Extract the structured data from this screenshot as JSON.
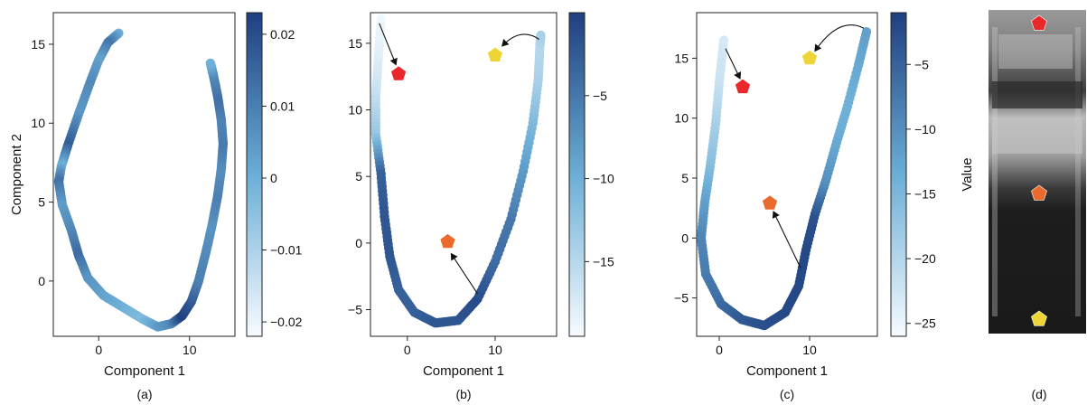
{
  "colors": {
    "cmap_light": "#f7fbff",
    "cmap_mid": "#6baed6",
    "cmap_dark": "#1f3f7f",
    "marker_red": "#e8282b",
    "marker_orange": "#eb6a2e",
    "marker_yellow": "#ecd534",
    "axis": "#222222"
  },
  "panels": {
    "a": {
      "caption": "(a)"
    },
    "b": {
      "caption": "(b)"
    },
    "c": {
      "caption": "(c)"
    },
    "d": {
      "caption": "(d)"
    }
  },
  "photo": {
    "description_icon": "sample-tube-photo",
    "markers": [
      "red",
      "orange",
      "yellow"
    ]
  },
  "chart_data": [
    {
      "type": "scatter",
      "panel": "a",
      "xlabel": "Component 1",
      "ylabel": "Component 2",
      "xlim": [
        -5,
        15
      ],
      "ylim": [
        -3.5,
        17
      ],
      "xticks": [
        0,
        10
      ],
      "yticks": [
        0,
        5,
        10,
        15
      ],
      "colorbar": {
        "label": "",
        "range": [
          -0.022,
          0.023
        ],
        "ticks": [
          0.02,
          0.01,
          0,
          -0.01,
          -0.02
        ],
        "tick_labels": [
          "0.02",
          "0.01",
          "0",
          "−0.01",
          "−0.02"
        ]
      },
      "points": [
        {
          "x": 2.2,
          "y": 15.7,
          "v": 0.0
        },
        {
          "x": 1.0,
          "y": 15.1,
          "v": 0.012
        },
        {
          "x": 0.0,
          "y": 14.0,
          "v": 0.003
        },
        {
          "x": -1.0,
          "y": 12.5,
          "v": 0.008
        },
        {
          "x": -2.2,
          "y": 10.6,
          "v": 0.005
        },
        {
          "x": -3.4,
          "y": 8.6,
          "v": 0.017
        },
        {
          "x": -4.1,
          "y": 7.3,
          "v": 0.0
        },
        {
          "x": -4.4,
          "y": 6.3,
          "v": 0.013
        },
        {
          "x": -4.0,
          "y": 4.8,
          "v": 0.004
        },
        {
          "x": -3.0,
          "y": 3.2,
          "v": 0.008
        },
        {
          "x": -2.2,
          "y": 1.6,
          "v": 0.014
        },
        {
          "x": -1.2,
          "y": 0.2,
          "v": 0.006
        },
        {
          "x": 0.5,
          "y": -0.9,
          "v": 0.003
        },
        {
          "x": 2.8,
          "y": -1.7,
          "v": 0.0
        },
        {
          "x": 4.8,
          "y": -2.4,
          "v": -0.003
        },
        {
          "x": 6.5,
          "y": -2.9,
          "v": 0.004
        },
        {
          "x": 8.0,
          "y": -2.7,
          "v": 0.008
        },
        {
          "x": 9.2,
          "y": -2.2,
          "v": 0.023
        },
        {
          "x": 10.2,
          "y": -1.3,
          "v": 0.018
        },
        {
          "x": 11.0,
          "y": 0.0,
          "v": 0.01
        },
        {
          "x": 11.8,
          "y": 1.8,
          "v": 0.008
        },
        {
          "x": 12.5,
          "y": 3.6,
          "v": 0.006
        },
        {
          "x": 13.1,
          "y": 5.4,
          "v": 0.01
        },
        {
          "x": 13.5,
          "y": 7.1,
          "v": 0.007
        },
        {
          "x": 13.7,
          "y": 8.7,
          "v": 0.011
        },
        {
          "x": 13.5,
          "y": 10.2,
          "v": 0.009
        },
        {
          "x": 13.1,
          "y": 11.7,
          "v": 0.013
        },
        {
          "x": 12.6,
          "y": 13.1,
          "v": 0.008
        },
        {
          "x": 12.3,
          "y": 13.8,
          "v": 0.0
        }
      ]
    },
    {
      "type": "scatter",
      "panel": "b",
      "xlabel": "Component 1",
      "ylabel": "",
      "xlim": [
        -4.2,
        17
      ],
      "ylim": [
        -7,
        17.3
      ],
      "xticks": [
        0,
        10
      ],
      "yticks": [
        -5,
        0,
        5,
        10,
        15
      ],
      "colorbar": {
        "label": "",
        "range": [
          -19.5,
          0
        ],
        "ticks": [
          -5,
          -10,
          -15
        ],
        "tick_labels": [
          "−5",
          "−10",
          "−15"
        ]
      },
      "points": [
        {
          "x": -3.0,
          "y": 16.8,
          "v": -19
        },
        {
          "x": -3.3,
          "y": 14.0,
          "v": -18
        },
        {
          "x": -3.6,
          "y": 11.0,
          "v": -16
        },
        {
          "x": -3.6,
          "y": 8.2,
          "v": -13
        },
        {
          "x": -3.0,
          "y": 5.2,
          "v": -3
        },
        {
          "x": -2.6,
          "y": 2.0,
          "v": -2
        },
        {
          "x": -2.0,
          "y": -1.0,
          "v": -2
        },
        {
          "x": -1.0,
          "y": -3.5,
          "v": -3
        },
        {
          "x": 0.8,
          "y": -5.2,
          "v": -3
        },
        {
          "x": 3.2,
          "y": -6.0,
          "v": -2
        },
        {
          "x": 5.8,
          "y": -5.8,
          "v": -2
        },
        {
          "x": 8.0,
          "y": -4.2,
          "v": -1
        },
        {
          "x": 10.0,
          "y": -1.4,
          "v": -4
        },
        {
          "x": 11.8,
          "y": 1.8,
          "v": -5
        },
        {
          "x": 13.2,
          "y": 5.4,
          "v": -8
        },
        {
          "x": 14.3,
          "y": 9.0,
          "v": -11
        },
        {
          "x": 14.9,
          "y": 12.2,
          "v": -14
        },
        {
          "x": 15.1,
          "y": 14.8,
          "v": -15
        },
        {
          "x": 15.2,
          "y": 15.6,
          "v": -14
        }
      ],
      "markers": [
        {
          "name": "red",
          "x": -1.0,
          "y": 12.7
        },
        {
          "name": "yellow",
          "x": 10.0,
          "y": 14.1
        },
        {
          "name": "orange",
          "x": 4.6,
          "y": 0.1
        }
      ],
      "arrows": [
        {
          "from": [
            -3.2,
            16.5
          ],
          "to": [
            -1.3,
            13.4
          ]
        },
        {
          "from": [
            15.0,
            15.3
          ],
          "to": [
            10.8,
            14.8
          ]
        },
        {
          "from": [
            8.0,
            -3.8
          ],
          "to": [
            5.0,
            -0.8
          ]
        }
      ]
    },
    {
      "type": "scatter",
      "panel": "c",
      "xlabel": "Component 1",
      "ylabel": "Value",
      "xlim": [
        -2.5,
        17.5
      ],
      "ylim": [
        -8.2,
        18.8
      ],
      "xticks": [
        0,
        10
      ],
      "yticks": [
        -5,
        0,
        5,
        10,
        15
      ],
      "colorbar": {
        "label": "Value",
        "range": [
          -26,
          -1
        ],
        "ticks": [
          -5,
          -10,
          -15,
          -20,
          -25
        ],
        "tick_labels": [
          "−5",
          "−10",
          "−15",
          "−20",
          "−25"
        ]
      },
      "points": [
        {
          "x": 0.5,
          "y": 16.5,
          "v": -23
        },
        {
          "x": 0.0,
          "y": 13.0,
          "v": -22
        },
        {
          "x": -0.4,
          "y": 9.5,
          "v": -19
        },
        {
          "x": -1.0,
          "y": 6.0,
          "v": -16
        },
        {
          "x": -1.6,
          "y": 3.0,
          "v": -12
        },
        {
          "x": -2.0,
          "y": 0.0,
          "v": -9
        },
        {
          "x": -1.5,
          "y": -3.0,
          "v": -8
        },
        {
          "x": 0.2,
          "y": -5.5,
          "v": -6
        },
        {
          "x": 2.5,
          "y": -6.8,
          "v": -4
        },
        {
          "x": 5.0,
          "y": -7.3,
          "v": -3
        },
        {
          "x": 7.3,
          "y": -6.2,
          "v": -2
        },
        {
          "x": 8.8,
          "y": -4.0,
          "v": -2
        },
        {
          "x": 9.6,
          "y": -1.0,
          "v": -2
        },
        {
          "x": 10.6,
          "y": 2.0,
          "v": -3
        },
        {
          "x": 11.8,
          "y": 4.8,
          "v": -10
        },
        {
          "x": 13.0,
          "y": 8.0,
          "v": -13
        },
        {
          "x": 14.2,
          "y": 11.0,
          "v": -14
        },
        {
          "x": 15.4,
          "y": 14.4,
          "v": -13
        },
        {
          "x": 16.3,
          "y": 17.2,
          "v": -12
        }
      ],
      "markers": [
        {
          "name": "red",
          "x": 2.6,
          "y": 12.6
        },
        {
          "name": "yellow",
          "x": 10.0,
          "y": 15.0
        },
        {
          "name": "orange",
          "x": 5.6,
          "y": 2.9
        }
      ],
      "arrows": [
        {
          "from": [
            0.7,
            15.8
          ],
          "to": [
            2.3,
            13.3
          ]
        },
        {
          "from": [
            16.0,
            17.5
          ],
          "to": [
            10.6,
            15.6
          ]
        },
        {
          "from": [
            9.0,
            -2.5
          ],
          "to": [
            6.0,
            2.2
          ]
        }
      ]
    }
  ]
}
